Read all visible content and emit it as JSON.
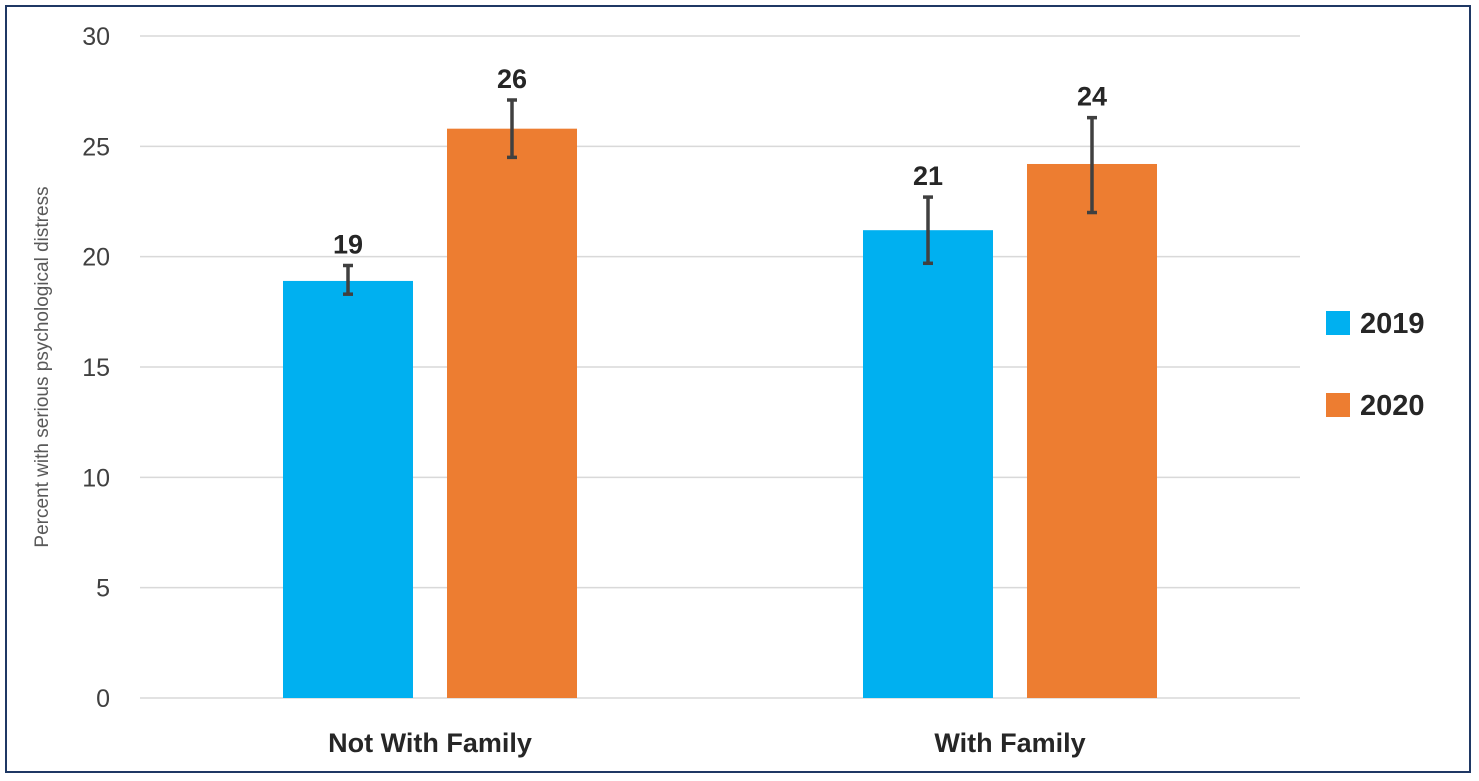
{
  "chart_data": {
    "type": "bar",
    "title": "",
    "xlabel": "",
    "ylabel": "Percent with serious psychological distress",
    "ylim": [
      0,
      30
    ],
    "yticks": [
      0,
      5,
      10,
      15,
      20,
      25,
      30
    ],
    "grid": true,
    "legend_position": "right",
    "categories": [
      "Not With Family",
      "With Family"
    ],
    "series": [
      {
        "name": "2019",
        "color": "#00b0f0",
        "values": [
          18.9,
          21.2
        ],
        "labels": [
          "19",
          "21"
        ],
        "error_low": [
          18.3,
          19.7
        ],
        "error_high": [
          19.6,
          22.7
        ]
      },
      {
        "name": "2020",
        "color": "#ed7d31",
        "values": [
          25.8,
          24.2
        ],
        "labels": [
          "26",
          "24"
        ],
        "error_low": [
          24.5,
          22.0
        ],
        "error_high": [
          27.1,
          26.3
        ]
      }
    ]
  }
}
